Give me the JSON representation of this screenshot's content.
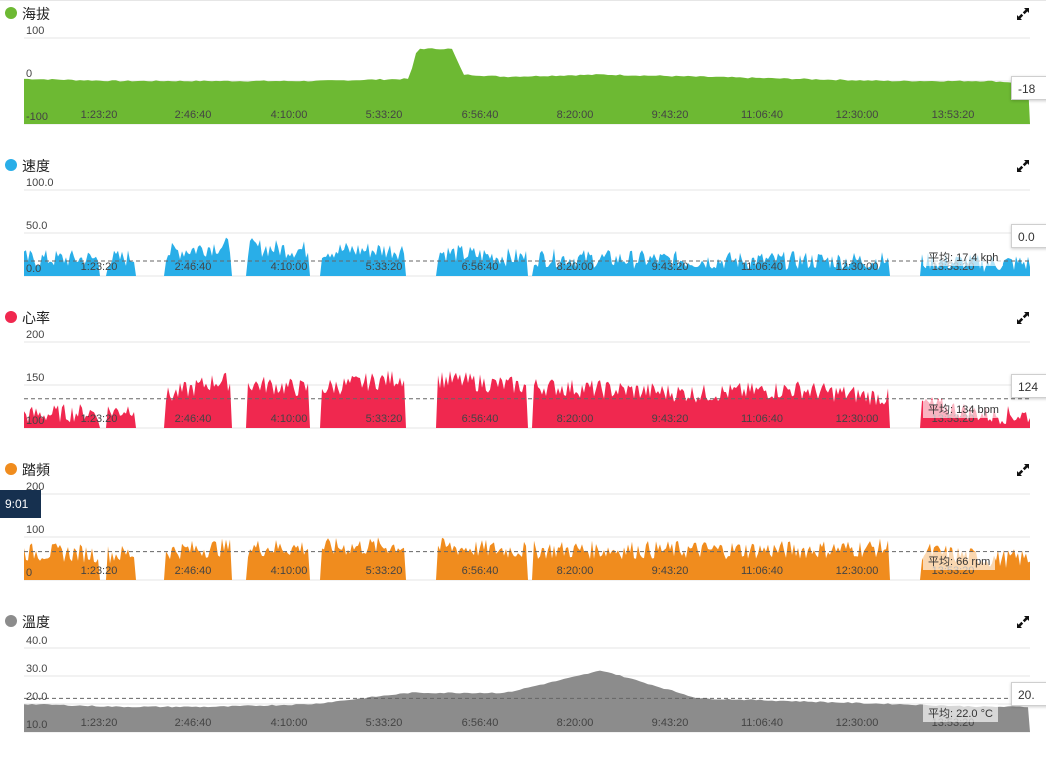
{
  "cursor_time": "9:01",
  "x_ticks": [
    "1:23:20",
    "2:46:40",
    "4:10:00",
    "5:33:20",
    "6:56:40",
    "8:20:00",
    "9:43:20",
    "11:06:40",
    "12:30:00",
    "13:53:20"
  ],
  "panels": [
    {
      "title": "海拔",
      "color": "#6db933",
      "y_ticks": [
        "100",
        "0",
        "-100"
      ],
      "tooltip_value": "-18",
      "average_label": "",
      "icon": "expand-icon"
    },
    {
      "title": "速度",
      "color": "#29aee8",
      "y_ticks": [
        "100.0",
        "50.0",
        "0.0"
      ],
      "tooltip_value": "0.0",
      "average_label": "平均: 17.4 kph",
      "icon": "expand-icon"
    },
    {
      "title": "心率",
      "color": "#f0284f",
      "y_ticks": [
        "200",
        "150",
        "100"
      ],
      "tooltip_value": "124",
      "average_label": "平均: 134 bpm",
      "icon": "expand-icon"
    },
    {
      "title": "踏頻",
      "color": "#f08c1e",
      "y_ticks": [
        "200",
        "100",
        "0"
      ],
      "tooltip_value": "",
      "average_label": "平均: 66 rpm",
      "icon": "expand-icon"
    },
    {
      "title": "溫度",
      "color": "#8c8c8c",
      "y_ticks": [
        "40.0",
        "30.0",
        "20.0",
        "10.0"
      ],
      "tooltip_value": "20.",
      "average_label": "平均: 22.0 °C",
      "icon": "expand-icon"
    }
  ],
  "chart_data": [
    {
      "type": "area",
      "title": "海拔",
      "x": [
        "0:00",
        "1:23:20",
        "2:46:40",
        "4:10:00",
        "5:33:20",
        "5:40:00",
        "6:10:00",
        "6:20:00",
        "6:56:40",
        "8:20:00",
        "9:43:20",
        "11:06:40",
        "12:30:00",
        "13:53:20",
        "14:30:00"
      ],
      "values": [
        5,
        0,
        0,
        0,
        5,
        75,
        75,
        15,
        10,
        15,
        10,
        5,
        0,
        0,
        -5
      ],
      "ylim": [
        -100,
        100
      ]
    },
    {
      "type": "area",
      "title": "速度",
      "x": [
        "0:00",
        "1:23:20",
        "2:46:40",
        "4:10:00",
        "5:33:20",
        "6:56:40",
        "8:20:00",
        "9:43:20",
        "11:06:40",
        "12:30:00",
        "13:53:20"
      ],
      "values": [
        20,
        20,
        35,
        30,
        30,
        22,
        20,
        18,
        18,
        18,
        15
      ],
      "average": 17.4,
      "ylim": [
        0,
        100
      ]
    },
    {
      "type": "area",
      "title": "心率",
      "x": [
        "0:00",
        "1:23:20",
        "2:46:40",
        "4:10:00",
        "5:33:20",
        "6:56:40",
        "8:20:00",
        "9:43:20",
        "11:06:40",
        "12:30:00",
        "13:53:20"
      ],
      "values": [
        115,
        120,
        155,
        145,
        160,
        150,
        145,
        140,
        145,
        135,
        115
      ],
      "average": 134,
      "ylim": [
        100,
        200
      ]
    },
    {
      "type": "area",
      "title": "踏頻",
      "x": [
        "0:00",
        "1:23:20",
        "2:46:40",
        "4:10:00",
        "5:33:20",
        "6:56:40",
        "8:20:00",
        "9:43:20",
        "11:06:40",
        "12:30:00",
        "13:53:20"
      ],
      "values": [
        65,
        60,
        75,
        75,
        80,
        70,
        70,
        70,
        70,
        75,
        50
      ],
      "average": 66,
      "ylim": [
        0,
        200
      ]
    },
    {
      "type": "area",
      "title": "溫度",
      "x": [
        "0:00",
        "1:23:20",
        "2:46:40",
        "4:10:00",
        "5:33:20",
        "6:56:40",
        "8:20:00",
        "9:43:20",
        "11:06:40",
        "12:30:00",
        "13:53:20"
      ],
      "values": [
        20,
        19,
        19,
        20,
        24,
        24,
        32,
        22,
        21,
        20,
        19
      ],
      "average": 22.0,
      "ylim": [
        10,
        40
      ]
    }
  ]
}
